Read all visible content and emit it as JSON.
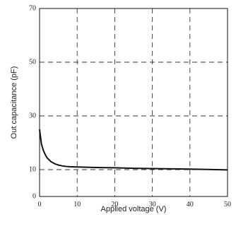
{
  "chart_data": {
    "type": "line",
    "title": "",
    "xlabel": "Applied voltage (V)",
    "ylabel": "Out capacitance (pF)",
    "xlim": [
      0,
      50
    ],
    "ylim": [
      0,
      70
    ],
    "x_ticks": [
      0,
      10,
      20,
      30,
      40,
      50
    ],
    "y_ticks": [
      0,
      10,
      30,
      50,
      70
    ],
    "grid": true,
    "series": [
      {
        "x": [
          0,
          0.5,
          1,
          1.5,
          2,
          3,
          4,
          5,
          6,
          7,
          8,
          10,
          15,
          20,
          25,
          30,
          35,
          40,
          45,
          50
        ],
        "values": [
          25,
          19.5,
          17.2,
          15.6,
          14.4,
          13.0,
          12.2,
          11.7,
          11.4,
          11.2,
          11.1,
          11.0,
          10.8,
          10.7,
          10.5,
          10.4,
          10.3,
          10.2,
          10.05,
          9.9
        ]
      }
    ]
  }
}
